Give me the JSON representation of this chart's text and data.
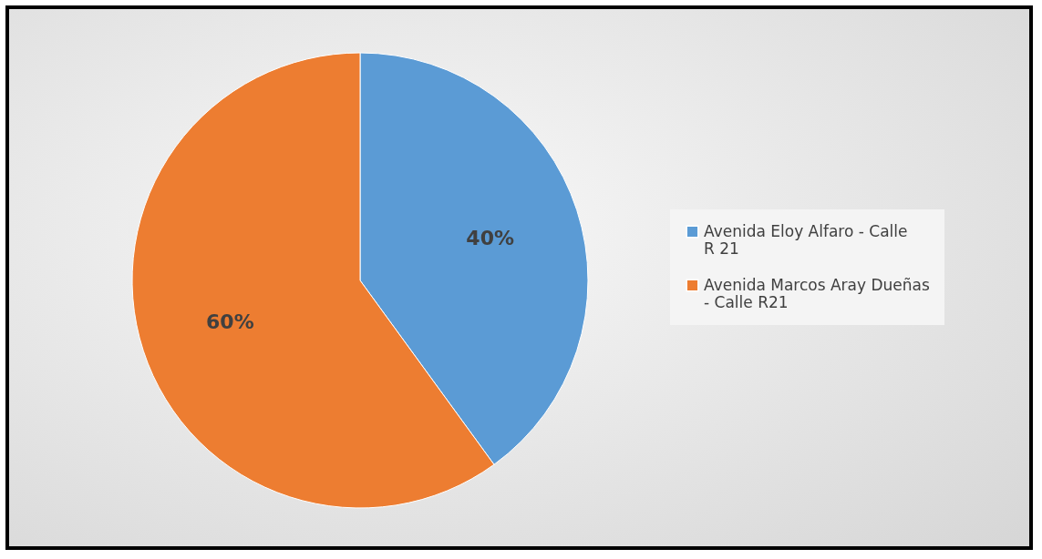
{
  "chart_data": {
    "type": "pie",
    "categories": [
      "Avenida Eloy Alfaro - Calle R 21",
      "Avenida Marcos Aray Dueñas - Calle R21"
    ],
    "values": [
      40,
      60
    ],
    "colors": [
      "#5b9bd5",
      "#ed7d31"
    ],
    "value_labels": [
      "40%",
      "60%"
    ],
    "legend": "right"
  }
}
